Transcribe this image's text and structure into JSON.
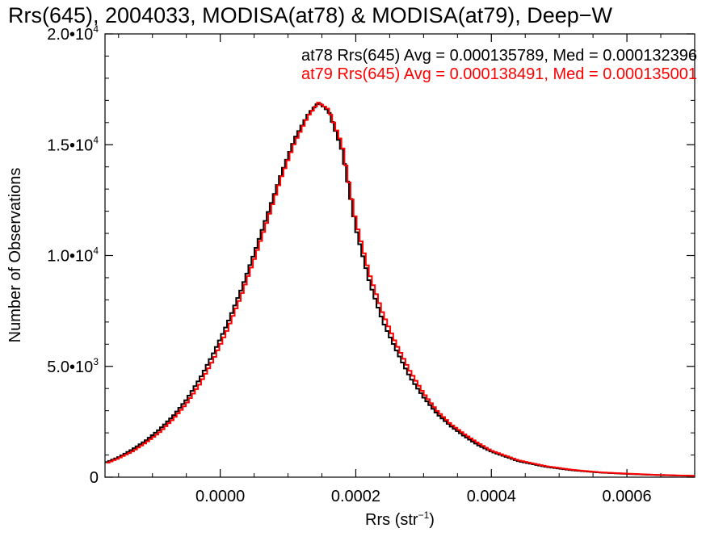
{
  "chart_data": {
    "type": "line",
    "title": "Rrs(645), 2004033, MODISA(at78) & MODISA(at79), Deep−W",
    "xlabel_main": "Rrs (str",
    "xlabel_sup": "−1",
    "xlabel_close": ")",
    "ylabel": "Number of Observations",
    "xlim": [
      -0.00017,
      0.0007
    ],
    "ylim": [
      0,
      20000
    ],
    "x_ticks": [
      {
        "value": 0.0,
        "label": "0.0000"
      },
      {
        "value": 0.0002,
        "label": "0.0002"
      },
      {
        "value": 0.0004,
        "label": "0.0004"
      },
      {
        "value": 0.0006,
        "label": "0.0006"
      }
    ],
    "y_ticks": [
      {
        "value": 0,
        "base": "0",
        "exp": ""
      },
      {
        "value": 5000,
        "base": "5.0•10",
        "exp": "3"
      },
      {
        "value": 10000,
        "base": "1.0•10",
        "exp": "4"
      },
      {
        "value": 15000,
        "base": "1.5•10",
        "exp": "4"
      },
      {
        "value": 20000,
        "base": "2.0•10",
        "exp": "4"
      }
    ],
    "series": [
      {
        "color": "#000000",
        "stats": "at78 Rrs(645) Avg = 0.000135789, Med = 0.000132396",
        "x": [
          -0.00017,
          -0.00015,
          -0.00013,
          -0.00011,
          -9e-05,
          -7e-05,
          -5e-05,
          -3e-05,
          -1e-05,
          1e-05,
          3e-05,
          5e-05,
          7e-05,
          9e-05,
          0.00011,
          0.00013,
          0.000145,
          0.00016,
          0.00018,
          0.0002,
          0.00022,
          0.00024,
          0.00026,
          0.00028,
          0.0003,
          0.00032,
          0.00034,
          0.00036,
          0.00038,
          0.0004,
          0.00044,
          0.00048,
          0.00052,
          0.00056,
          0.0006,
          0.00064,
          0.00068,
          0.0007
        ],
        "y": [
          650,
          900,
          1250,
          1650,
          2150,
          2750,
          3500,
          4450,
          5600,
          6900,
          8400,
          10100,
          11900,
          13700,
          15300,
          16400,
          16900,
          16500,
          14700,
          11200,
          8800,
          7000,
          5700,
          4500,
          3600,
          2850,
          2300,
          1850,
          1450,
          1150,
          720,
          470,
          310,
          210,
          150,
          100,
          70,
          60
        ]
      },
      {
        "color": "#ff0000",
        "stats": "at79 Rrs(645) Avg = 0.000138491, Med = 0.000135001",
        "x": [
          -0.00017,
          -0.00015,
          -0.00013,
          -0.00011,
          -9e-05,
          -7e-05,
          -5e-05,
          -3e-05,
          -1e-05,
          1e-05,
          3e-05,
          5e-05,
          7e-05,
          9e-05,
          0.00011,
          0.00013,
          0.000145,
          0.00016,
          0.00018,
          0.0002,
          0.00022,
          0.00024,
          0.00026,
          0.00028,
          0.0003,
          0.00032,
          0.00034,
          0.00036,
          0.00038,
          0.0004,
          0.00044,
          0.00048,
          0.00052,
          0.00056,
          0.0006,
          0.00064,
          0.00068,
          0.0007
        ],
        "y": [
          600,
          850,
          1150,
          1550,
          2000,
          2600,
          3300,
          4200,
          5300,
          6600,
          8100,
          9800,
          11600,
          13500,
          15100,
          16300,
          16900,
          16600,
          15000,
          11600,
          9200,
          7400,
          6000,
          4800,
          3800,
          3000,
          2400,
          1950,
          1550,
          1200,
          760,
          500,
          330,
          220,
          160,
          110,
          75,
          60
        ]
      }
    ]
  }
}
